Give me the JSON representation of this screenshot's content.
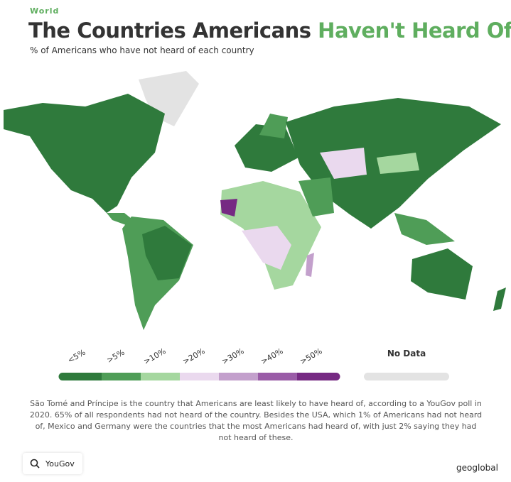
{
  "header": {
    "kicker": "World",
    "title_main": "The Countries Americans",
    "title_highlight": "Haven't Heard Of",
    "subtitle": "% of Americans who have not heard of each country"
  },
  "legend": {
    "items": [
      {
        "label": "<5%",
        "color": "#2f7a3c"
      },
      {
        "label": ">5%",
        "color": "#4f9d57"
      },
      {
        "label": ">10%",
        "color": "#a5d79f"
      },
      {
        "label": ">20%",
        "color": "#ead9ee"
      },
      {
        "label": ">30%",
        "color": "#c3a0cc"
      },
      {
        "label": ">40%",
        "color": "#9a5ca7"
      },
      {
        "label": ">50%",
        "color": "#762a83"
      }
    ],
    "no_data": {
      "label": "No Data",
      "color": "#e3e3e3"
    }
  },
  "description": "São Tomé and Príncipe is the country that Americans are least likely to have heard of, according to a YouGov poll in 2020. 65% of all respondents had not heard of the country. Besides the USA, which 1% of Americans had not heard of, Mexico and Germany were the countries that the most Americans had heard of, with just 2% saying they had not heard of these.",
  "footer": {
    "source": "YouGov",
    "brand": "geoglobal"
  }
}
